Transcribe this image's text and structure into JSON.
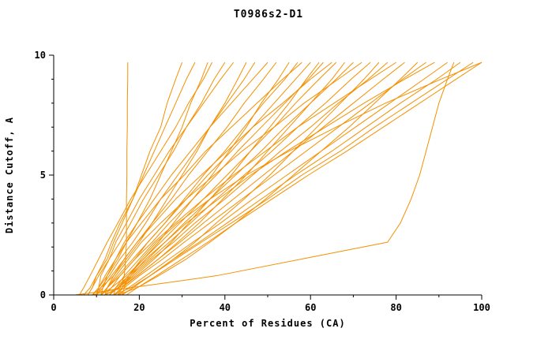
{
  "title": "T0986s2-D1",
  "chart_data": {
    "type": "line",
    "title": "T0986s2-D1",
    "xlabel": "Percent of Residues (CA)",
    "ylabel": "Distance Cutoff, A",
    "xlim": [
      0,
      100
    ],
    "ylim": [
      0,
      10
    ],
    "x_ticks": [
      0,
      20,
      40,
      60,
      80,
      100
    ],
    "y_ticks": [
      0,
      5,
      10
    ],
    "x_minor_ticks": [
      10,
      30,
      50,
      70,
      90
    ],
    "y_minor_ticks": [
      1,
      2,
      3,
      4,
      6,
      7,
      8,
      9
    ],
    "grid": false,
    "legend": "none",
    "line_color": "#f59000",
    "axis_color": "#000000",
    "y_levels": [
      0,
      0.3,
      0.8,
      1.5,
      2.2,
      3,
      4,
      5,
      6,
      7,
      8,
      9,
      9.7
    ],
    "series": [
      [
        9,
        15.5,
        16.5,
        16.8,
        17,
        17,
        17,
        17.1,
        17.1,
        17.2,
        17.2,
        17.3,
        17.3
      ],
      [
        7,
        8.5,
        10,
        12.5,
        14,
        16,
        18.5,
        20.5,
        22.5,
        25,
        26.5,
        28.5,
        30
      ],
      [
        8,
        9,
        10,
        12,
        13.5,
        15.5,
        18.5,
        21,
        23.5,
        26,
        28.5,
        31,
        33
      ],
      [
        9,
        10.5,
        12.5,
        15,
        17,
        19.5,
        22.5,
        25,
        27.5,
        30,
        32,
        34.5,
        36
      ],
      [
        8,
        9,
        10.5,
        13,
        15.5,
        18,
        21,
        24.5,
        28,
        31,
        34.5,
        37.5,
        40
      ],
      [
        6,
        7,
        8.5,
        10.5,
        12.5,
        15,
        18,
        21.5,
        25,
        28.5,
        31.5,
        35,
        37
      ],
      [
        10,
        10.5,
        11,
        13,
        14.5,
        17,
        20,
        23.5,
        27,
        31,
        35,
        39,
        42
      ],
      [
        9,
        11,
        14,
        17,
        20,
        23,
        26.5,
        30,
        33.5,
        36.5,
        40,
        43,
        45
      ],
      [
        10,
        11,
        13,
        15.5,
        18.5,
        21.5,
        25,
        29,
        33,
        36.5,
        40.5,
        44.5,
        47
      ],
      [
        11,
        11.5,
        12.5,
        14.5,
        16.5,
        19.5,
        23.5,
        27.5,
        32,
        36.5,
        41.5,
        46.5,
        50
      ],
      [
        10,
        11.5,
        13.5,
        16.5,
        19.5,
        23,
        27.5,
        31.5,
        36,
        40.5,
        44.5,
        49,
        52
      ],
      [
        11,
        13.5,
        17,
        21,
        24.5,
        28,
        32.5,
        37,
        41,
        45,
        48.5,
        52.5,
        55
      ],
      [
        12,
        13.5,
        15.5,
        19,
        22,
        26,
        30.5,
        35,
        40,
        44.5,
        49,
        54,
        57
      ],
      [
        10,
        10.5,
        12,
        14.5,
        17,
        20.5,
        25,
        30.5,
        35.5,
        41.5,
        47.5,
        53.5,
        58
      ],
      [
        11,
        12.5,
        15,
        18.5,
        22,
        26,
        31,
        36,
        41.5,
        46.5,
        51.5,
        56.5,
        60
      ],
      [
        12,
        15,
        19,
        23.5,
        27.5,
        31.5,
        36.5,
        41.5,
        46,
        50.5,
        55,
        59,
        62
      ],
      [
        11,
        12.5,
        15.5,
        19,
        23,
        27,
        32.5,
        38,
        43,
        48.5,
        54,
        59.5,
        63
      ],
      [
        12,
        12.5,
        14,
        16.5,
        19.5,
        23.5,
        28.5,
        34.5,
        40.5,
        46.5,
        53.5,
        60,
        65
      ],
      [
        13,
        14.5,
        17.5,
        21,
        25,
        29.5,
        35,
        40.5,
        46,
        51.5,
        56.5,
        62,
        66
      ],
      [
        12,
        15.5,
        19.5,
        24.5,
        29,
        34,
        39.5,
        45,
        50,
        55,
        60,
        65,
        68
      ],
      [
        13,
        15,
        17.5,
        22,
        26,
        30.5,
        36.5,
        42.5,
        48.5,
        54,
        60,
        66,
        70
      ],
      [
        12,
        12.5,
        14.5,
        17.5,
        20.5,
        25,
        31,
        37.5,
        44,
        51.5,
        58.5,
        66.5,
        72
      ],
      [
        13,
        15,
        18,
        22.5,
        27,
        32,
        38,
        44.5,
        51,
        57,
        63.5,
        69.5,
        74
      ],
      [
        14,
        18,
        22.5,
        28,
        33,
        38,
        44.5,
        50.5,
        56,
        61.5,
        67,
        72.5,
        76
      ],
      [
        13,
        15,
        18.5,
        23,
        28,
        33,
        40,
        46.5,
        53,
        60,
        66.5,
        73.5,
        78
      ],
      [
        14,
        14.5,
        16.5,
        20,
        23.5,
        28.5,
        35,
        42,
        49.5,
        57,
        65.5,
        74,
        80
      ],
      [
        14,
        16,
        19.5,
        24.5,
        29.5,
        35,
        42,
        49,
        56,
        63,
        70,
        77,
        82
      ],
      [
        15,
        19.5,
        24.5,
        31,
        36.5,
        42.5,
        49.5,
        56,
        62.5,
        69,
        75,
        81,
        85
      ],
      [
        14,
        16.5,
        20,
        25.5,
        30.5,
        36.5,
        44,
        51.5,
        59,
        66.5,
        74,
        81.5,
        87
      ],
      [
        15,
        16,
        18,
        21.5,
        26,
        31,
        38.5,
        46,
        54.5,
        63.5,
        72.5,
        82,
        89
      ],
      [
        15,
        17.5,
        21.5,
        27,
        32.5,
        39,
        46.5,
        54.5,
        62.5,
        70.5,
        78.5,
        86.5,
        92
      ],
      [
        16,
        18.5,
        22.5,
        28,
        34,
        40.5,
        48.5,
        56.5,
        65,
        73,
        81,
        89.5,
        95
      ],
      [
        16,
        18.5,
        22.5,
        28.5,
        34.5,
        41.5,
        50,
        58,
        67,
        75,
        83.5,
        92,
        98
      ],
      [
        17,
        19.5,
        24,
        30,
        36,
        42.5,
        51,
        59.5,
        68.5,
        77,
        85.5,
        94,
        100
      ],
      [
        16,
        16.5,
        17.5,
        20.5,
        24,
        29,
        36.5,
        45,
        55,
        66,
        77.5,
        90.5,
        100
      ],
      [
        5,
        18,
        38,
        58,
        78,
        81,
        83.5,
        85.5,
        87,
        88.5,
        90,
        92,
        93.5
      ]
    ]
  }
}
